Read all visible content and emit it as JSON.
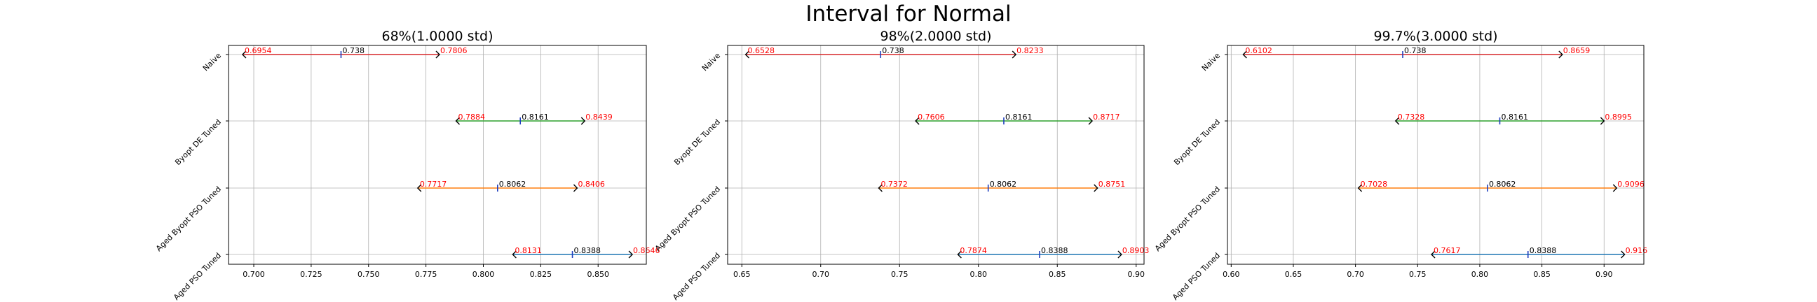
{
  "suptitle": "Interval for Normal",
  "chart_data": [
    {
      "type": "interval",
      "title": "68%(1.0000 std)",
      "xlim": [
        0.689,
        0.871
      ],
      "xticks": [
        0.7,
        0.725,
        0.75,
        0.775,
        0.8,
        0.825,
        0.85
      ],
      "xtick_labels": [
        "0.700",
        "0.725",
        "0.750",
        "0.775",
        "0.800",
        "0.825",
        "0.850"
      ],
      "grid": true,
      "categories": [
        "Naive",
        "Byopt DE Tuned",
        "Aged Byopt PSO Tuned",
        "Aged PSO Tuned"
      ],
      "intervals": [
        {
          "name": "Naive",
          "lower": 0.6954,
          "mean": 0.738,
          "upper": 0.7806,
          "lower_label": "0.6954",
          "mean_label": "0.738",
          "upper_label": "0.7806",
          "color": "#d62728"
        },
        {
          "name": "Byopt DE Tuned",
          "lower": 0.7884,
          "mean": 0.8161,
          "upper": 0.8439,
          "lower_label": "0.7884",
          "mean_label": "0.8161",
          "upper_label": "0.8439",
          "color": "#2ca02c"
        },
        {
          "name": "Aged Byopt PSO Tuned",
          "lower": 0.7717,
          "mean": 0.8062,
          "upper": 0.8406,
          "lower_label": "0.7717",
          "mean_label": "0.8062",
          "upper_label": "0.8406",
          "color": "#ff7f0e"
        },
        {
          "name": "Aged PSO Tuned",
          "lower": 0.8131,
          "mean": 0.8388,
          "upper": 0.8646,
          "lower_label": "0.8131",
          "mean_label": "0.8388",
          "upper_label": "0.8646",
          "color": "#1f77b4"
        }
      ]
    },
    {
      "type": "interval",
      "title": "98%(2.0000 std)",
      "xlim": [
        0.641,
        0.905
      ],
      "xticks": [
        0.65,
        0.7,
        0.75,
        0.8,
        0.85,
        0.9
      ],
      "xtick_labels": [
        "0.65",
        "0.70",
        "0.75",
        "0.80",
        "0.85",
        "0.90"
      ],
      "grid": true,
      "categories": [
        "Naive",
        "Byopt DE Tuned",
        "Aged Byopt PSO Tuned",
        "Aged PSO Tuned"
      ],
      "intervals": [
        {
          "name": "Naive",
          "lower": 0.6528,
          "mean": 0.738,
          "upper": 0.8233,
          "lower_label": "0.6528",
          "mean_label": "0.738",
          "upper_label": "0.8233",
          "color": "#d62728"
        },
        {
          "name": "Byopt DE Tuned",
          "lower": 0.7606,
          "mean": 0.8161,
          "upper": 0.8717,
          "lower_label": "0.7606",
          "mean_label": "0.8161",
          "upper_label": "0.8717",
          "color": "#2ca02c"
        },
        {
          "name": "Aged Byopt PSO Tuned",
          "lower": 0.7372,
          "mean": 0.8062,
          "upper": 0.8751,
          "lower_label": "0.7372",
          "mean_label": "0.8062",
          "upper_label": "0.8751",
          "color": "#ff7f0e"
        },
        {
          "name": "Aged PSO Tuned",
          "lower": 0.7874,
          "mean": 0.8388,
          "upper": 0.8903,
          "lower_label": "0.7874",
          "mean_label": "0.8388",
          "upper_label": "0.8903",
          "color": "#1f77b4"
        }
      ]
    },
    {
      "type": "interval",
      "title": "99.7%(3.0000 std)",
      "xlim": [
        0.597,
        0.932
      ],
      "xticks": [
        0.6,
        0.65,
        0.7,
        0.75,
        0.8,
        0.85,
        0.9
      ],
      "xtick_labels": [
        "0.60",
        "0.65",
        "0.70",
        "0.75",
        "0.80",
        "0.85",
        "0.90"
      ],
      "grid": true,
      "categories": [
        "Naive",
        "Byopt DE Tuned",
        "Aged Byopt PSO Tuned",
        "Aged PSO Tuned"
      ],
      "intervals": [
        {
          "name": "Naive",
          "lower": 0.6102,
          "mean": 0.738,
          "upper": 0.8659,
          "lower_label": "0.6102",
          "mean_label": "0.738",
          "upper_label": "0.8659",
          "color": "#d62728"
        },
        {
          "name": "Byopt DE Tuned",
          "lower": 0.7328,
          "mean": 0.8161,
          "upper": 0.8995,
          "lower_label": "0.7328",
          "mean_label": "0.8161",
          "upper_label": "0.8995",
          "color": "#2ca02c"
        },
        {
          "name": "Aged Byopt PSO Tuned",
          "lower": 0.7028,
          "mean": 0.8062,
          "upper": 0.9096,
          "lower_label": "0.7028",
          "mean_label": "0.8062",
          "upper_label": "0.9096",
          "color": "#ff7f0e"
        },
        {
          "name": "Aged PSO Tuned",
          "lower": 0.7617,
          "mean": 0.8388,
          "upper": 0.916,
          "lower_label": "0.7617",
          "mean_label": "0.8388",
          "upper_label": "0.916",
          "color": "#1f77b4"
        }
      ]
    }
  ]
}
